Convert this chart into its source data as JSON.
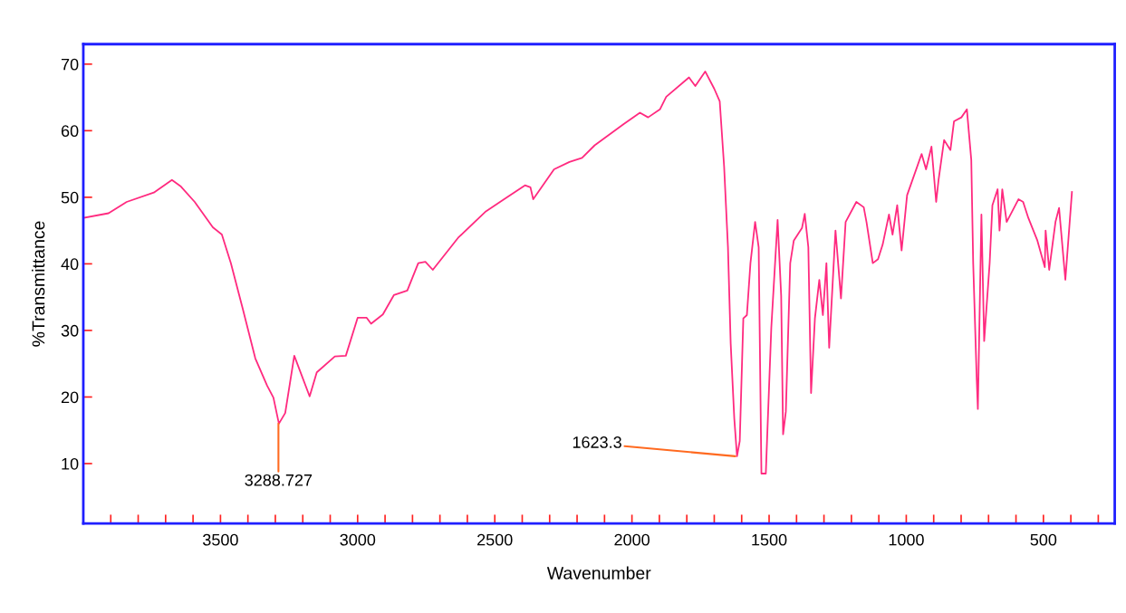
{
  "chart_data": {
    "type": "line",
    "xlabel": "Wavenumber",
    "ylabel": "%Transmittance",
    "xlim": [
      4000,
      240
    ],
    "ylim": [
      1,
      73
    ],
    "xticks": [
      {
        "value": 3900,
        "label": null
      },
      {
        "value": 3800,
        "label": null
      },
      {
        "value": 3700,
        "label": null
      },
      {
        "value": 3600,
        "label": null
      },
      3500,
      {
        "value": 3400,
        "label": null
      },
      {
        "value": 3300,
        "label": null
      },
      {
        "value": 3200,
        "label": null
      },
      {
        "value": 3100,
        "label": null
      },
      3000,
      {
        "value": 2900,
        "label": null
      },
      {
        "value": 2800,
        "label": null
      },
      {
        "value": 2700,
        "label": null
      },
      {
        "value": 2600,
        "label": null
      },
      2500,
      {
        "value": 2400,
        "label": null
      },
      {
        "value": 2300,
        "label": null
      },
      {
        "value": 2200,
        "label": null
      },
      {
        "value": 2100,
        "label": null
      },
      2000,
      {
        "value": 1900,
        "label": null
      },
      {
        "value": 1800,
        "label": null
      },
      {
        "value": 1700,
        "label": null
      },
      {
        "value": 1600,
        "label": null
      },
      1500,
      {
        "value": 1400,
        "label": null
      },
      {
        "value": 1300,
        "label": null
      },
      {
        "value": 1200,
        "label": null
      },
      {
        "value": 1100,
        "label": null
      },
      1000,
      {
        "value": 900,
        "label": null
      },
      {
        "value": 800,
        "label": null
      },
      {
        "value": 700,
        "label": null
      },
      {
        "value": 600,
        "label": null
      },
      500,
      {
        "value": 400,
        "label": null
      },
      {
        "value": 300,
        "label": null
      }
    ],
    "yticks": [
      10,
      20,
      30,
      40,
      50,
      60,
      70
    ],
    "grid": false,
    "marker": "none",
    "line_style": "solid",
    "annotations": [
      {
        "text": "3288.727",
        "x": 3288.727,
        "y": 16.0
      },
      {
        "text": "1623.3",
        "x": 1623.3,
        "y": 11.1
      }
    ],
    "series": [
      {
        "color": "#ff2a7f",
        "x": [
          4000,
          3908,
          3842,
          3743,
          3677,
          3644,
          3594,
          3528,
          3495,
          3462,
          3419,
          3373,
          3330,
          3307,
          3287,
          3264,
          3231,
          3175,
          3149,
          3083,
          3043,
          3000,
          2967,
          2951,
          2908,
          2868,
          2819,
          2779,
          2753,
          2726,
          2634,
          2535,
          2466,
          2390,
          2370,
          2360,
          2284,
          2228,
          2182,
          2136,
          2030,
          1971,
          1941,
          1898,
          1875,
          1792,
          1769,
          1733,
          1700,
          1680,
          1664,
          1650,
          1640,
          1627,
          1617,
          1607,
          1594,
          1581,
          1568,
          1551,
          1538,
          1528,
          1512,
          1492,
          1469,
          1456,
          1449,
          1439,
          1423,
          1410,
          1380,
          1370,
          1357,
          1347,
          1333,
          1317,
          1304,
          1291,
          1281,
          1258,
          1238,
          1221,
          1182,
          1155,
          1145,
          1122,
          1103,
          1086,
          1063,
          1050,
          1033,
          1017,
          997,
          944,
          928,
          908,
          891,
          882,
          862,
          839,
          826,
          799,
          779,
          763,
          756,
          743,
          739,
          726,
          716,
          696,
          686,
          667,
          660,
          650,
          634,
          591,
          574,
          555,
          522,
          495,
          492,
          479,
          456,
          443,
          420,
          396
        ],
        "values": [
          46.9,
          47.6,
          49.3,
          50.7,
          52.6,
          51.6,
          49.3,
          45.5,
          44.4,
          40.1,
          33.3,
          25.8,
          21.7,
          19.9,
          16.0,
          17.6,
          26.2,
          20.1,
          23.7,
          26.1,
          26.2,
          31.9,
          31.9,
          31.0,
          32.4,
          35.3,
          36.0,
          40.1,
          40.3,
          39.1,
          43.9,
          47.8,
          49.7,
          51.8,
          51.5,
          49.7,
          54.2,
          55.3,
          55.9,
          57.8,
          61.0,
          62.7,
          62.0,
          63.2,
          65.1,
          68.0,
          66.7,
          68.9,
          66.3,
          64.4,
          54.6,
          42.5,
          28.0,
          16.8,
          11.1,
          13.4,
          31.8,
          32.3,
          40.1,
          46.3,
          42.5,
          8.5,
          8.5,
          30.4,
          46.6,
          35.2,
          14.4,
          17.8,
          40.1,
          43.5,
          45.4,
          47.5,
          42.5,
          20.6,
          31.8,
          37.6,
          32.3,
          40.1,
          27.4,
          45.0,
          34.8,
          46.3,
          49.3,
          48.5,
          46.3,
          40.1,
          40.7,
          42.9,
          47.4,
          44.4,
          48.8,
          42.0,
          50.3,
          56.5,
          54.2,
          57.6,
          49.3,
          52.7,
          58.6,
          57.1,
          61.4,
          62.0,
          63.2,
          55.6,
          40.1,
          22.5,
          18.2,
          47.4,
          28.4,
          40.1,
          48.8,
          51.2,
          45.0,
          51.2,
          46.3,
          49.7,
          49.3,
          46.9,
          43.5,
          39.5,
          45.0,
          39.1,
          46.3,
          48.4,
          37.6,
          50.8
        ]
      }
    ]
  }
}
